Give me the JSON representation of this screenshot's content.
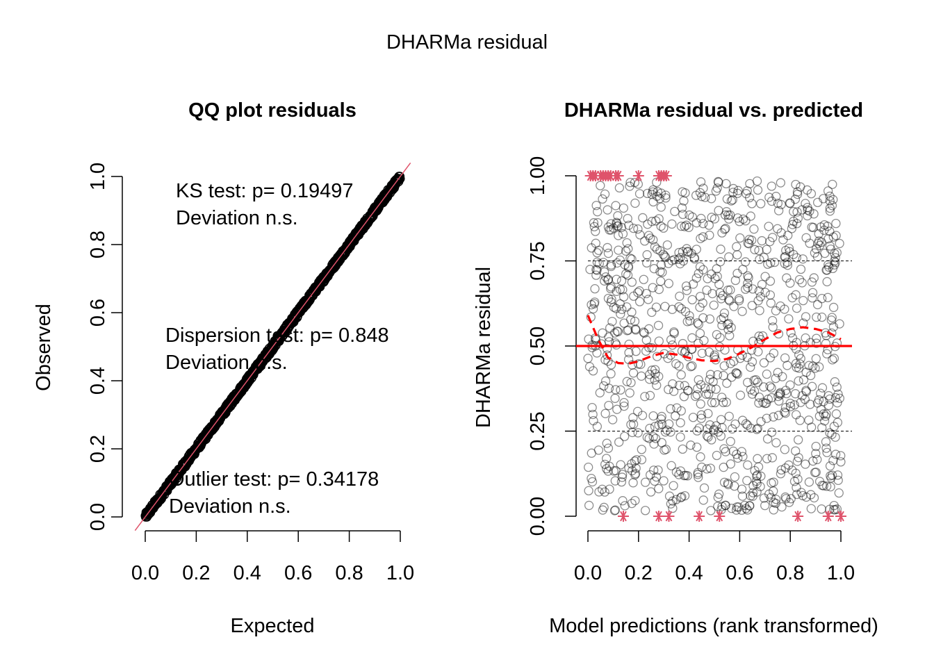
{
  "super_title": "DHARMa residual",
  "chart_data": [
    {
      "type": "scatter",
      "title": "QQ plot residuals",
      "xlabel": "Expected",
      "ylabel": "Observed",
      "xlim": [
        0,
        1
      ],
      "ylim": [
        0,
        1
      ],
      "x_ticks": [
        "0.0",
        "0.2",
        "0.4",
        "0.6",
        "0.8",
        "1.0"
      ],
      "y_ticks": [
        "0.0",
        "0.2",
        "0.4",
        "0.6",
        "0.8",
        "1.0"
      ],
      "reference_line": {
        "intercept": 0,
        "slope": 1,
        "color": "#DF536B"
      },
      "points_color": "#000000",
      "annotations": [
        {
          "lines": [
            "KS test: p= 0.19497",
            "Deviation  n.s."
          ]
        },
        {
          "lines": [
            "Dispersion test: p= 0.848",
            "Deviation  n.s."
          ]
        },
        {
          "lines": [
            "Outlier test: p= 0.34178",
            "Deviation  n.s."
          ]
        }
      ]
    },
    {
      "type": "scatter",
      "title": "DHARMa residual vs. predicted",
      "xlabel": "Model predictions (rank transformed)",
      "ylabel": "DHARMa residual",
      "xlim": [
        0,
        1
      ],
      "ylim": [
        0,
        1
      ],
      "x_ticks": [
        "0.0",
        "0.2",
        "0.4",
        "0.6",
        "0.8",
        "1.0"
      ],
      "y_ticks": [
        "0.00",
        "0.25",
        "0.50",
        "0.75",
        "1.00"
      ],
      "grid": "dashed lines at 0.25 and 0.75",
      "reference_line": {
        "y": 0.5,
        "color": "#FF0000"
      },
      "quantile_curve": {
        "color": "#FF0000",
        "style": "dashed",
        "points": [
          [
            0.0,
            0.59
          ],
          [
            0.04,
            0.52
          ],
          [
            0.08,
            0.465
          ],
          [
            0.12,
            0.45
          ],
          [
            0.16,
            0.448
          ],
          [
            0.2,
            0.455
          ],
          [
            0.25,
            0.47
          ],
          [
            0.3,
            0.48
          ],
          [
            0.35,
            0.475
          ],
          [
            0.4,
            0.465
          ],
          [
            0.45,
            0.458
          ],
          [
            0.5,
            0.456
          ],
          [
            0.55,
            0.462
          ],
          [
            0.6,
            0.478
          ],
          [
            0.65,
            0.497
          ],
          [
            0.7,
            0.52
          ],
          [
            0.75,
            0.54
          ],
          [
            0.8,
            0.55
          ],
          [
            0.85,
            0.555
          ],
          [
            0.9,
            0.55
          ],
          [
            0.95,
            0.54
          ],
          [
            1.0,
            0.52
          ]
        ]
      },
      "outliers_high": [
        0.01,
        0.02,
        0.03,
        0.05,
        0.06,
        0.07,
        0.08,
        0.09,
        0.11,
        0.12,
        0.2,
        0.28,
        0.29,
        0.3,
        0.31
      ],
      "outliers_low": [
        0.14,
        0.28,
        0.32,
        0.44,
        0.52,
        0.83,
        0.95,
        1.0
      ],
      "outlier_color": "#DF536B",
      "points_color": "#000000",
      "points_opacity": 0.45
    }
  ]
}
